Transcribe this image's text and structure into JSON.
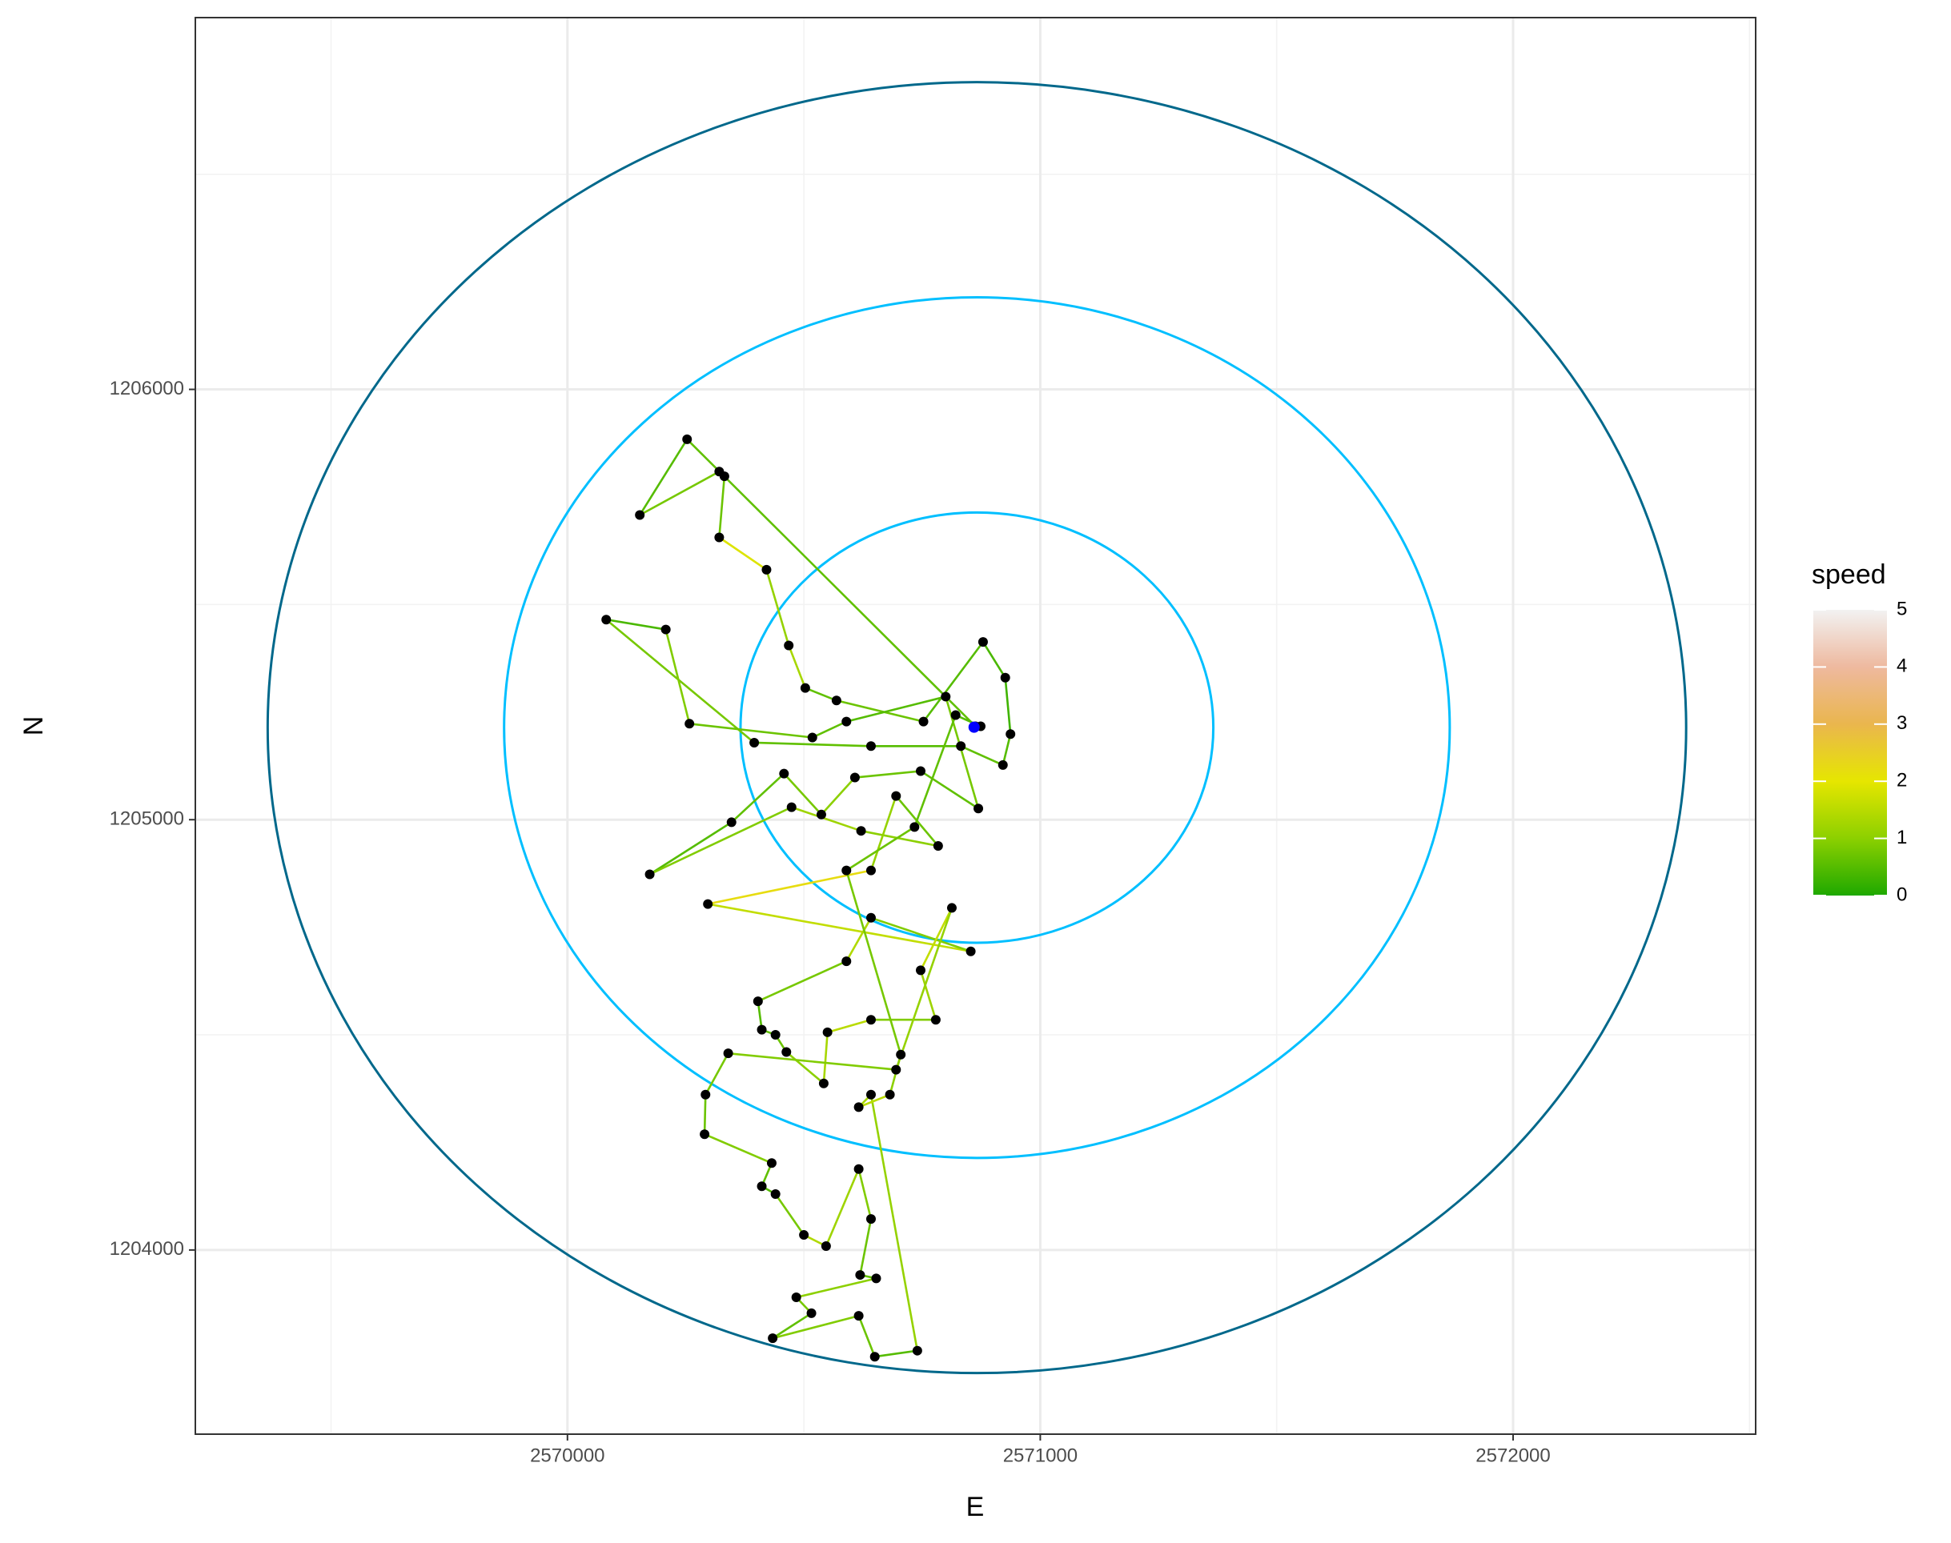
{
  "chart_data": {
    "type": "track",
    "xlabel": "E",
    "ylabel": "N",
    "xlim": [
      2569213,
      2572513
    ],
    "ylim": [
      1203572,
      1206864
    ],
    "xticks": [
      2570000,
      2571000,
      2572000
    ],
    "yticks": [
      1204000,
      1205000,
      1206000
    ],
    "grid": true,
    "center": {
      "x": 2570866,
      "y": 1205214
    },
    "circles": [
      {
        "radius": 500,
        "color": "#00BFFF"
      },
      {
        "radius": 1000,
        "color": "#00BFFF"
      },
      {
        "radius": 1500,
        "color": "#00688B"
      }
    ],
    "track": {
      "point_color": "#000000",
      "x": [
        2570863,
        2570253,
        2570153,
        2570321,
        2570332,
        2570321,
        2570421,
        2570468,
        2570503,
        2570569,
        2570753,
        2570879,
        2570926,
        2570937,
        2570921,
        2570832,
        2570642,
        2570395,
        2570082,
        2570208,
        2570258,
        2570518,
        2570590,
        2570800,
        2570869,
        2570747,
        2570608,
        2570537,
        2570458,
        2570347,
        2570174,
        2570474,
        2570621,
        2570784,
        2570695,
        2570642,
        2570297,
        2570853,
        2570642,
        2570590,
        2570403,
        2570411,
        2570440,
        2570463,
        2570542,
        2570550,
        2570642,
        2570779,
        2570747,
        2570813,
        2570695,
        2570340,
        2570292,
        2570290,
        2570432,
        2570411,
        2570440,
        2570500,
        2570547,
        2570616,
        2570642,
        2570619,
        2570653,
        2570484,
        2570516,
        2570434,
        2570616,
        2570650,
        2570740,
        2570642,
        2570616,
        2570682,
        2570705,
        2570590,
        2570734,
        2570821,
        2570874
      ],
      "y": [
        1205217,
        1205884,
        1205708,
        1205809,
        1205798,
        1205656,
        1205581,
        1205405,
        1205306,
        1205277,
        1205228,
        1205413,
        1205330,
        1205199,
        1205127,
        1205171,
        1205171,
        1205179,
        1205465,
        1205442,
        1205223,
        1205191,
        1205228,
        1205286,
        1205026,
        1205113,
        1205098,
        1205012,
        1205107,
        1204994,
        1204873,
        1205029,
        1204974,
        1204939,
        1205055,
        1204882,
        1204804,
        1204694,
        1204772,
        1204671,
        1204578,
        1204512,
        1204500,
        1204460,
        1204387,
        1204506,
        1204535,
        1204535,
        1204650,
        1204795,
        1204419,
        1204457,
        1204361,
        1204269,
        1204202,
        1204148,
        1204130,
        1204035,
        1204009,
        1204188,
        1204072,
        1203942,
        1203934,
        1203890,
        1203853,
        1203795,
        1203847,
        1203752,
        1203766,
        1204361,
        1204332,
        1204361,
        1204454,
        1204882,
        1204983,
        1205243,
        1205217
      ],
      "segment_speed": [
        0.6,
        0.5,
        0.8,
        0.4,
        0.7,
        1.9,
        1.1,
        1.3,
        0.6,
        0.7,
        0.5,
        0.4,
        0.3,
        0.5,
        0.6,
        0.5,
        0.6,
        0.8,
        0.4,
        0.9,
        0.7,
        0.6,
        0.5,
        0.8,
        0.6,
        0.7,
        1.0,
        0.8,
        0.6,
        0.5,
        0.9,
        1.2,
        1.0,
        0.7,
        1.1,
        2.2,
        1.6,
        0.9,
        1.4,
        0.8,
        0.5,
        0.6,
        0.7,
        1.0,
        1.3,
        1.5,
        0.9,
        1.2,
        1.6,
        1.1,
        0.9,
        0.8,
        0.7,
        0.9,
        0.6,
        0.5,
        0.8,
        1.4,
        1.2,
        0.9,
        0.7,
        0.6,
        1.0,
        0.8,
        0.6,
        0.9,
        0.7,
        0.5,
        1.1,
        1.3,
        1.5,
        1.0,
        0.8,
        0.7,
        0.6,
        0.5
      ]
    },
    "highlight": {
      "x": 2570860,
      "y": 1205215,
      "color": "#0000FF"
    },
    "legend": {
      "title": "speed",
      "lim": [
        0,
        5
      ],
      "ticks": [
        0,
        1,
        2,
        3,
        4,
        5
      ],
      "colorscale": [
        {
          "value": 0,
          "color": "#1EA800"
        },
        {
          "value": 1,
          "color": "#8CD000"
        },
        {
          "value": 2,
          "color": "#E6E600"
        },
        {
          "value": 3,
          "color": "#EAB64E"
        },
        {
          "value": 4,
          "color": "#EEB99F"
        },
        {
          "value": 5,
          "color": "#F2F2F2"
        }
      ]
    }
  }
}
